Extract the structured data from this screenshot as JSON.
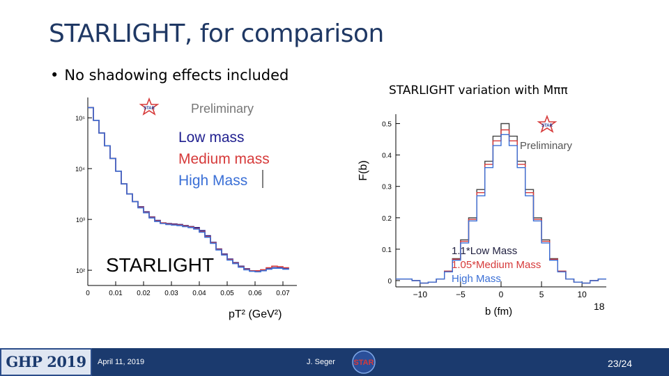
{
  "slide": {
    "title": "STARLIGHT, for comparison",
    "bullet": "No shadowing effects included",
    "right_caption": "STARLIGHT variation with Mππ"
  },
  "left_plot": {
    "logo_text": "STAR",
    "preliminary": "Preliminary",
    "legend": [
      "Low mass",
      "Medium mass",
      "High Mass"
    ],
    "overlay_label": "STARLIGHT",
    "xlabel": "pT² (GeV²)",
    "x_ticks": [
      "0",
      "0.01",
      "0.02",
      "0.03",
      "0.04",
      "0.05",
      "0.06",
      "0.07"
    ],
    "y_ticks": [
      "10⁵",
      "10⁴",
      "10³",
      "10²"
    ]
  },
  "right_plot": {
    "logo_text": "STAR",
    "preliminary": "Preliminary",
    "legend": [
      "1.1*Low Mass",
      "1.05*Medium Mass",
      "High Mass"
    ],
    "ylabel": "F(b)",
    "xlabel": "b (fm)",
    "x_ticks": [
      "−10",
      "−5",
      "0",
      "5",
      "10"
    ],
    "x_extra": "18",
    "y_ticks": [
      "0",
      "0.1",
      "0.2",
      "0.3",
      "0.4",
      "0.5"
    ]
  },
  "chart_data": [
    {
      "type": "line",
      "title": "",
      "xlabel": "pT² (GeV²)",
      "ylabel": "",
      "xlim": [
        0,
        0.075
      ],
      "ylim_log10": [
        1.7,
        5.4
      ],
      "x": [
        0.0,
        0.002,
        0.004,
        0.006,
        0.008,
        0.01,
        0.012,
        0.014,
        0.016,
        0.018,
        0.02,
        0.022,
        0.024,
        0.026,
        0.028,
        0.03,
        0.032,
        0.034,
        0.036,
        0.038,
        0.04,
        0.042,
        0.044,
        0.046,
        0.048,
        0.05,
        0.052,
        0.054,
        0.056,
        0.058,
        0.06,
        0.062,
        0.064,
        0.066,
        0.068,
        0.07,
        0.072
      ],
      "series": [
        {
          "name": "Low mass",
          "log10_values": [
            5.2,
            4.95,
            4.7,
            4.45,
            4.2,
            3.95,
            3.7,
            3.5,
            3.35,
            3.25,
            3.15,
            3.05,
            2.98,
            2.93,
            2.92,
            2.91,
            2.9,
            2.88,
            2.86,
            2.84,
            2.78,
            2.68,
            2.55,
            2.42,
            2.32,
            2.22,
            2.15,
            2.08,
            2.03,
            1.99,
            1.98,
            2.0,
            2.03,
            2.05,
            2.05,
            2.03,
            2.02
          ]
        },
        {
          "name": "Medium mass",
          "log10_values": [
            5.2,
            4.95,
            4.7,
            4.45,
            4.2,
            3.95,
            3.7,
            3.5,
            3.35,
            3.24,
            3.14,
            3.04,
            2.97,
            2.93,
            2.91,
            2.9,
            2.89,
            2.87,
            2.85,
            2.82,
            2.76,
            2.66,
            2.54,
            2.41,
            2.31,
            2.21,
            2.14,
            2.07,
            2.02,
            1.99,
            1.99,
            2.01,
            2.05,
            2.08,
            2.07,
            2.05,
            2.04
          ]
        },
        {
          "name": "High Mass",
          "log10_values": [
            5.2,
            4.95,
            4.7,
            4.45,
            4.2,
            3.95,
            3.7,
            3.5,
            3.35,
            3.23,
            3.13,
            3.03,
            2.96,
            2.92,
            2.9,
            2.89,
            2.88,
            2.86,
            2.84,
            2.81,
            2.75,
            2.65,
            2.53,
            2.4,
            2.3,
            2.2,
            2.13,
            2.06,
            2.01,
            1.98,
            1.97,
            1.99,
            2.02,
            2.04,
            2.04,
            2.02,
            2.01
          ]
        }
      ]
    },
    {
      "type": "line",
      "title": "",
      "xlabel": "b (fm)",
      "ylabel": "F(b)",
      "xlim": [
        -13,
        13
      ],
      "ylim": [
        -0.02,
        0.53
      ],
      "x": [
        -13,
        -12,
        -11,
        -10,
        -9,
        -8,
        -7,
        -6,
        -5,
        -4,
        -3,
        -2,
        -1,
        0,
        1,
        2,
        3,
        4,
        5,
        6,
        7,
        8,
        9,
        10,
        11,
        12,
        13
      ],
      "series": [
        {
          "name": "1.1*Low Mass",
          "values": [
            0.005,
            0.005,
            0.0,
            -0.008,
            -0.005,
            0.005,
            0.03,
            0.07,
            0.13,
            0.2,
            0.29,
            0.38,
            0.46,
            0.5,
            0.46,
            0.38,
            0.29,
            0.2,
            0.13,
            0.07,
            0.03,
            0.005,
            -0.005,
            -0.008,
            0.0,
            0.005,
            0.005
          ]
        },
        {
          "name": "1.05*Medium Mass",
          "values": [
            0.005,
            0.005,
            0.0,
            -0.008,
            -0.005,
            0.005,
            0.03,
            0.068,
            0.125,
            0.195,
            0.28,
            0.37,
            0.445,
            0.48,
            0.445,
            0.37,
            0.28,
            0.195,
            0.125,
            0.068,
            0.03,
            0.005,
            -0.005,
            -0.008,
            0.0,
            0.005,
            0.005
          ]
        },
        {
          "name": "High Mass",
          "values": [
            0.005,
            0.005,
            0.0,
            -0.008,
            -0.005,
            0.005,
            0.028,
            0.065,
            0.12,
            0.19,
            0.27,
            0.36,
            0.43,
            0.465,
            0.43,
            0.36,
            0.27,
            0.19,
            0.12,
            0.065,
            0.028,
            0.005,
            -0.005,
            -0.008,
            0.0,
            0.005,
            0.005
          ]
        }
      ]
    }
  ],
  "footer": {
    "logo_text": "GHP 2019",
    "date": "April 11, 2019",
    "author": "J. Seger",
    "star_logo": "STAR",
    "page": "23/24"
  },
  "colors": {
    "low": "#1f1f8f",
    "medium": "#d63a3a",
    "high": "#3a6fd6",
    "title": "#1f3864",
    "footer": "#1b3a6e"
  }
}
